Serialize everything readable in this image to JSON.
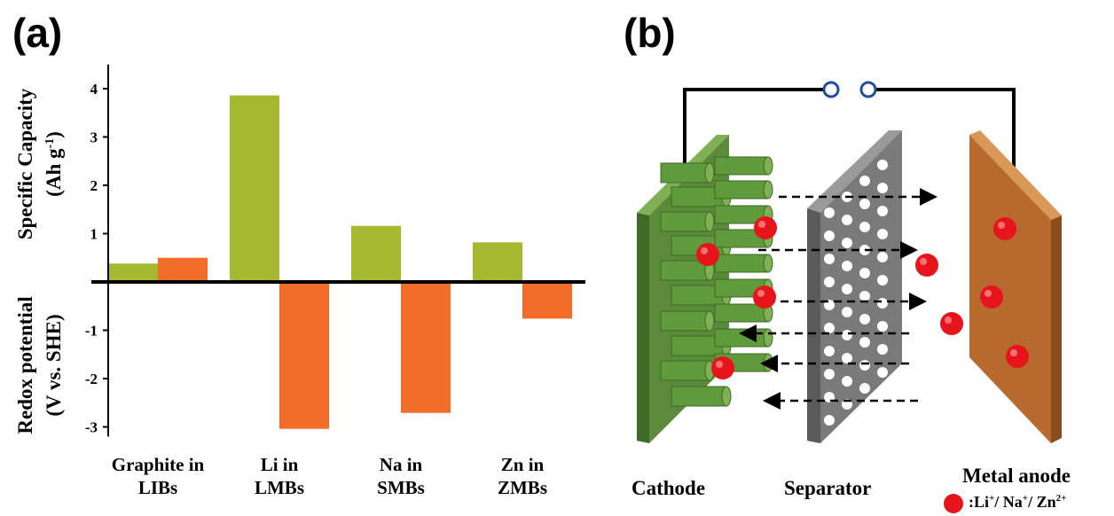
{
  "panel_a_label": "(a)",
  "panel_b_label": "(b)",
  "chart_data": {
    "type": "bar",
    "categories": [
      [
        "Graphite in",
        "LIBs"
      ],
      [
        "Li in",
        "LMBs"
      ],
      [
        "Na in",
        "SMBs"
      ],
      [
        "Zn in",
        "ZMBs"
      ]
    ],
    "series": [
      {
        "name": "",
        "color": "#a5b82f",
        "values": [
          0.38,
          3.86,
          1.16,
          0.82
        ]
      },
      {
        "name": "",
        "color": "#f26c2a",
        "values": [
          0.5,
          -3.04,
          -2.71,
          -0.76
        ]
      }
    ],
    "ylabel_top": [
      "Specific Capacity",
      "(Ah g-1)"
    ],
    "ylabel_bottom": [
      "Redox potential",
      "(V vs. SHE)"
    ],
    "yticks": [
      4,
      3,
      2,
      1,
      -1,
      -2,
      -3
    ],
    "ylim": [
      -3.2,
      4.5
    ],
    "grid": false
  },
  "diagram": {
    "cathode_label": "Cathode",
    "separator_label": "Separator",
    "anode_label": "Metal anode",
    "ion_legend": ":Li+/ Na+/ Zn2+",
    "colors": {
      "cathode": "#5a8a3a",
      "separator": "#7a7a7a",
      "anode": "#b86a2e",
      "ion": "#e8141c",
      "wire": "#000000",
      "switch": "#1f4f9a"
    }
  }
}
